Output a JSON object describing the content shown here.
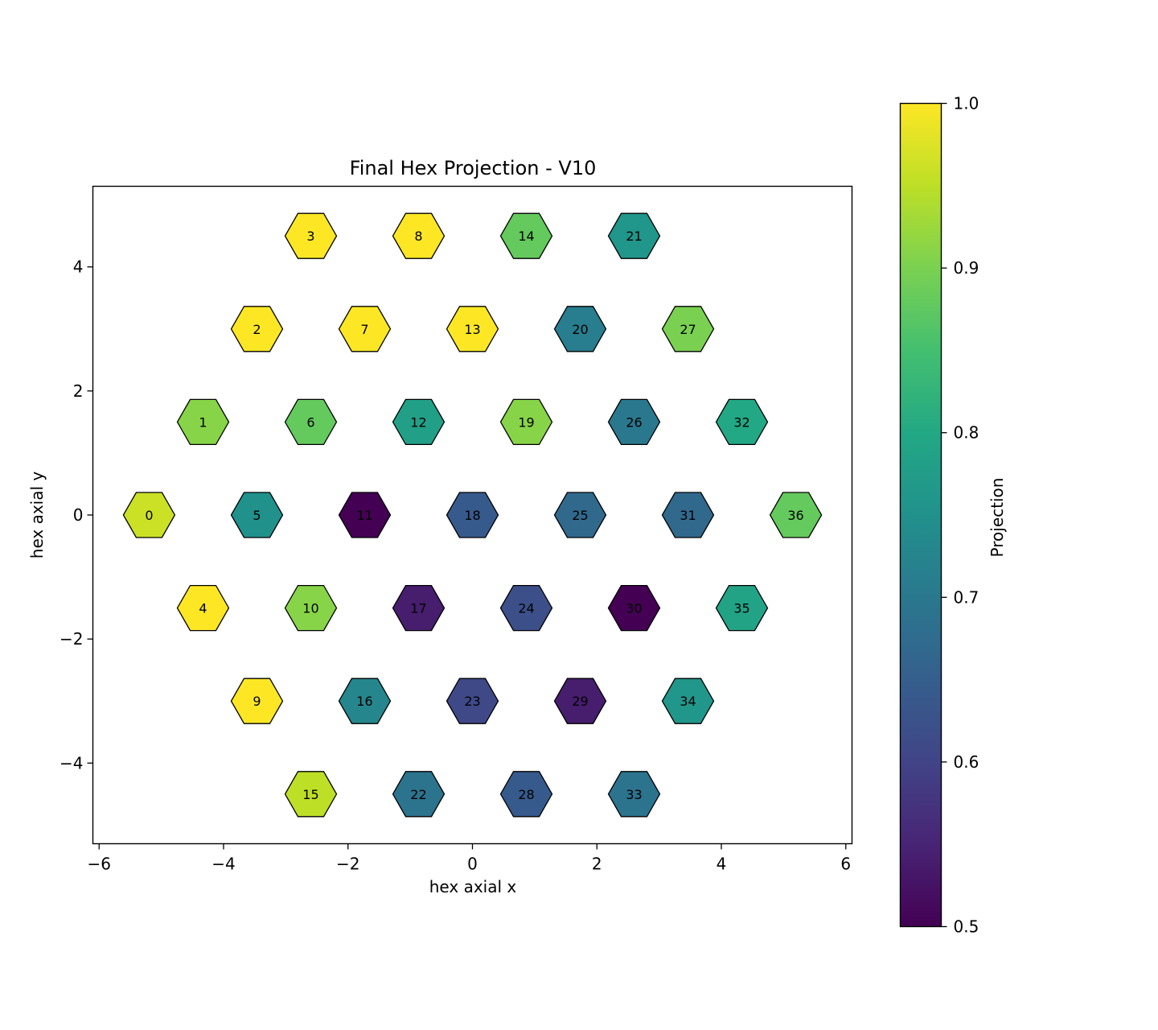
{
  "chart_data": {
    "type": "hexbin",
    "title": "Final Hex Projection - V10",
    "xlabel": "hex axial x",
    "ylabel": "hex axial y",
    "xlim": [
      -6.1,
      6.1
    ],
    "ylim": [
      -5.3,
      5.3
    ],
    "x_ticks": [
      -6,
      -4,
      -2,
      0,
      2,
      4,
      6
    ],
    "x_tick_labels": [
      "−6",
      "−4",
      "−2",
      "0",
      "2",
      "4",
      "6"
    ],
    "y_ticks": [
      -4,
      -2,
      0,
      2,
      4
    ],
    "y_tick_labels": [
      "−4",
      "−2",
      "0",
      "2",
      "4"
    ],
    "colorbar": {
      "label": "Projection",
      "range": [
        0.5,
        1.0
      ],
      "ticks": [
        0.5,
        0.6,
        0.7,
        0.8,
        0.9,
        1.0
      ],
      "tick_labels": [
        "0.5",
        "0.6",
        "0.7",
        "0.8",
        "0.9",
        "1.0"
      ],
      "colormap": "viridis"
    },
    "cells": [
      {
        "id": "0",
        "x": -5.196,
        "y": 0.0,
        "value": 0.96
      },
      {
        "id": "1",
        "x": -4.33,
        "y": 1.5,
        "value": 0.91
      },
      {
        "id": "2",
        "x": -3.464,
        "y": 3.0,
        "value": 1.0
      },
      {
        "id": "3",
        "x": -2.598,
        "y": 4.5,
        "value": 1.0
      },
      {
        "id": "4",
        "x": -4.33,
        "y": -1.5,
        "value": 1.0
      },
      {
        "id": "5",
        "x": -3.464,
        "y": 0.0,
        "value": 0.75
      },
      {
        "id": "6",
        "x": -2.598,
        "y": 1.5,
        "value": 0.88
      },
      {
        "id": "7",
        "x": -1.732,
        "y": 3.0,
        "value": 1.0
      },
      {
        "id": "8",
        "x": -0.866,
        "y": 4.5,
        "value": 1.0
      },
      {
        "id": "9",
        "x": -3.464,
        "y": -3.0,
        "value": 1.0
      },
      {
        "id": "10",
        "x": -2.598,
        "y": -1.5,
        "value": 0.91
      },
      {
        "id": "11",
        "x": -1.732,
        "y": 0.0,
        "value": 0.5
      },
      {
        "id": "12",
        "x": -0.866,
        "y": 1.5,
        "value": 0.78
      },
      {
        "id": "13",
        "x": 0.0,
        "y": 3.0,
        "value": 1.0
      },
      {
        "id": "14",
        "x": 0.866,
        "y": 4.5,
        "value": 0.88
      },
      {
        "id": "15",
        "x": -2.598,
        "y": -4.5,
        "value": 0.95
      },
      {
        "id": "16",
        "x": -1.732,
        "y": -3.0,
        "value": 0.73
      },
      {
        "id": "17",
        "x": -0.866,
        "y": -1.5,
        "value": 0.54
      },
      {
        "id": "18",
        "x": 0.0,
        "y": 0.0,
        "value": 0.64
      },
      {
        "id": "19",
        "x": 0.866,
        "y": 1.5,
        "value": 0.91
      },
      {
        "id": "20",
        "x": 1.732,
        "y": 3.0,
        "value": 0.71
      },
      {
        "id": "21",
        "x": 2.598,
        "y": 4.5,
        "value": 0.76
      },
      {
        "id": "22",
        "x": -0.866,
        "y": -4.5,
        "value": 0.69
      },
      {
        "id": "23",
        "x": 0.0,
        "y": -3.0,
        "value": 0.61
      },
      {
        "id": "24",
        "x": 0.866,
        "y": -1.5,
        "value": 0.62
      },
      {
        "id": "25",
        "x": 1.732,
        "y": 0.0,
        "value": 0.67
      },
      {
        "id": "26",
        "x": 2.598,
        "y": 1.5,
        "value": 0.7
      },
      {
        "id": "27",
        "x": 3.464,
        "y": 3.0,
        "value": 0.9
      },
      {
        "id": "28",
        "x": 0.866,
        "y": -4.5,
        "value": 0.64
      },
      {
        "id": "29",
        "x": 1.732,
        "y": -3.0,
        "value": 0.54
      },
      {
        "id": "30",
        "x": 2.598,
        "y": -1.5,
        "value": 0.5
      },
      {
        "id": "31",
        "x": 3.464,
        "y": 0.0,
        "value": 0.67
      },
      {
        "id": "32",
        "x": 4.33,
        "y": 1.5,
        "value": 0.8
      },
      {
        "id": "33",
        "x": 2.598,
        "y": -4.5,
        "value": 0.69
      },
      {
        "id": "34",
        "x": 3.464,
        "y": -3.0,
        "value": 0.76
      },
      {
        "id": "35",
        "x": 4.33,
        "y": -1.5,
        "value": 0.79
      },
      {
        "id": "36",
        "x": 5.196,
        "y": 0.0,
        "value": 0.88
      }
    ]
  }
}
